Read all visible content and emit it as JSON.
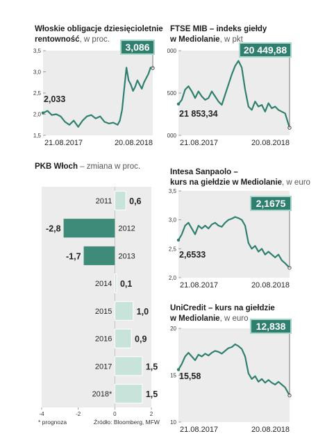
{
  "chart_data": [
    {
      "id": "bonds",
      "type": "line",
      "title": "Włoskie obligacje dziesięcioletnie",
      "title2": "rentowność",
      "subtitle": ", w proc.",
      "ylim": [
        1.5,
        3.5
      ],
      "yticks": [
        "3,5",
        "3,0",
        "2,5",
        "2,0",
        "1,5"
      ],
      "ytick_values": [
        3.5,
        3.0,
        2.5,
        2.0,
        1.5
      ],
      "xtick_labels": [
        "21.08.2017",
        "20.08.2018"
      ],
      "start_label": "2,033",
      "end_label": "3,086",
      "x": [
        0,
        0.04,
        0.08,
        0.12,
        0.16,
        0.2,
        0.24,
        0.28,
        0.32,
        0.36,
        0.4,
        0.44,
        0.48,
        0.52,
        0.56,
        0.6,
        0.64,
        0.68,
        0.7,
        0.72,
        0.74,
        0.76,
        0.78,
        0.8,
        0.82,
        0.84,
        0.86,
        0.88,
        0.9,
        0.92,
        0.94,
        0.96,
        0.98,
        1.0
      ],
      "values": [
        2.03,
        2.08,
        1.98,
        2.0,
        1.95,
        1.82,
        1.75,
        1.85,
        1.7,
        1.85,
        1.95,
        1.98,
        1.9,
        1.95,
        1.82,
        1.78,
        1.8,
        1.75,
        1.85,
        2.1,
        2.6,
        3.1,
        2.8,
        2.7,
        2.55,
        2.65,
        2.8,
        2.7,
        2.6,
        2.75,
        2.85,
        2.95,
        3.1,
        3.09
      ]
    },
    {
      "id": "ftse",
      "type": "line",
      "title": "FTSE MIB – indeks giełdy",
      "title2": "w Mediolanie",
      "subtitle": ", w pkt",
      "ylim": [
        20000,
        25000
      ],
      "yticks": [
        "25 000",
        "22 500",
        "20 000"
      ],
      "ytick_values": [
        25000,
        22500,
        20000
      ],
      "xtick_labels": [
        "21.08.2017",
        "20.08.2018"
      ],
      "start_label": "21 853,34",
      "end_label": "20 449,88",
      "x": [
        0,
        0.03,
        0.06,
        0.09,
        0.12,
        0.15,
        0.18,
        0.21,
        0.24,
        0.27,
        0.3,
        0.33,
        0.36,
        0.39,
        0.42,
        0.45,
        0.48,
        0.51,
        0.54,
        0.57,
        0.6,
        0.63,
        0.66,
        0.69,
        0.72,
        0.75,
        0.78,
        0.81,
        0.84,
        0.87,
        0.9,
        0.93,
        0.96,
        1.0
      ],
      "values": [
        21850,
        22100,
        22700,
        22900,
        22600,
        22200,
        22600,
        22300,
        22100,
        22200,
        22600,
        22300,
        22000,
        21800,
        22400,
        23000,
        23600,
        24100,
        24400,
        24000,
        22700,
        21700,
        21500,
        22000,
        21700,
        21800,
        21400,
        21900,
        21600,
        21700,
        21500,
        21400,
        21300,
        20450
      ]
    },
    {
      "id": "pkb",
      "type": "bar",
      "title": "PKB Włoch",
      "subtitle": " – zmiana w proc.",
      "categories": [
        "2011",
        "2012",
        "2013",
        "2014",
        "2015",
        "2016",
        "2017",
        "2018*"
      ],
      "values": [
        0.6,
        -2.8,
        -1.7,
        0.1,
        1.0,
        0.9,
        1.5,
        1.5
      ],
      "value_labels": [
        "0,6",
        "-2,8",
        "-1,7",
        "0,1",
        "1,0",
        "0,9",
        "1,5",
        "1,5"
      ],
      "xlim": [
        -4,
        2
      ],
      "xticks": [
        "-4",
        "-2",
        "0",
        "2"
      ],
      "xtick_values": [
        -4,
        -2,
        0,
        2
      ],
      "footnote": "* prognoza",
      "source": "Źródło: Bloomberg, MFW"
    },
    {
      "id": "intesa",
      "type": "line",
      "title": "Intesa Sanpaolo –",
      "title2": "kurs na giełdzie w Mediolanie",
      "subtitle": ", w euro",
      "ylim": [
        2.0,
        3.5
      ],
      "yticks": [
        "3,5",
        "3,0",
        "2,5",
        "2,0"
      ],
      "ytick_values": [
        3.5,
        3.0,
        2.5,
        2.0
      ],
      "xtick_labels": [
        "21.08.2017",
        "20.08.2018"
      ],
      "start_label": "2,6533",
      "end_label": "2,1675",
      "x": [
        0,
        0.03,
        0.06,
        0.09,
        0.12,
        0.15,
        0.18,
        0.21,
        0.24,
        0.27,
        0.3,
        0.33,
        0.36,
        0.39,
        0.42,
        0.45,
        0.48,
        0.51,
        0.54,
        0.57,
        0.6,
        0.63,
        0.66,
        0.69,
        0.72,
        0.75,
        0.78,
        0.81,
        0.84,
        0.87,
        0.9,
        0.93,
        0.96,
        1.0
      ],
      "values": [
        2.65,
        2.75,
        2.9,
        2.95,
        2.85,
        2.75,
        2.9,
        2.85,
        2.9,
        2.85,
        2.92,
        2.95,
        2.9,
        2.88,
        2.95,
        3.0,
        3.02,
        3.05,
        3.03,
        3.0,
        2.9,
        2.6,
        2.5,
        2.55,
        2.45,
        2.5,
        2.4,
        2.45,
        2.4,
        2.35,
        2.4,
        2.3,
        2.25,
        2.17
      ]
    },
    {
      "id": "unicredit",
      "type": "line",
      "title": "UniCredit – kurs na giełdzie",
      "title2": "w Mediolanie",
      "subtitle": ", w euro",
      "ylim": [
        10,
        20
      ],
      "yticks": [
        "20",
        "15",
        "10"
      ],
      "ytick_values": [
        20,
        15,
        10
      ],
      "xtick_labels": [
        "21.08.2017",
        "20.08.2018"
      ],
      "start_label": "15,58",
      "end_label": "12,838",
      "x": [
        0,
        0.03,
        0.06,
        0.09,
        0.12,
        0.15,
        0.18,
        0.21,
        0.24,
        0.27,
        0.3,
        0.33,
        0.36,
        0.39,
        0.42,
        0.45,
        0.48,
        0.51,
        0.54,
        0.57,
        0.6,
        0.63,
        0.66,
        0.69,
        0.72,
        0.75,
        0.78,
        0.81,
        0.84,
        0.87,
        0.9,
        0.93,
        0.96,
        1.0
      ],
      "values": [
        15.6,
        16.2,
        17.0,
        17.4,
        17.0,
        16.6,
        17.2,
        17.0,
        17.3,
        17.1,
        17.4,
        17.6,
        17.5,
        17.3,
        17.6,
        17.9,
        18.0,
        18.3,
        18.1,
        17.8,
        17.0,
        15.2,
        14.6,
        14.9,
        14.3,
        14.6,
        14.2,
        14.5,
        14.2,
        14.0,
        14.3,
        14.0,
        13.7,
        12.84
      ]
    }
  ],
  "colors": {
    "line": "#2f7f6f",
    "box_fill": "#2f7f6f",
    "box_stroke": "#a9d6c8",
    "plot_bg": "#ececec",
    "bar_pos": "#c7e3da",
    "bar_neg": "#3d8b78"
  }
}
